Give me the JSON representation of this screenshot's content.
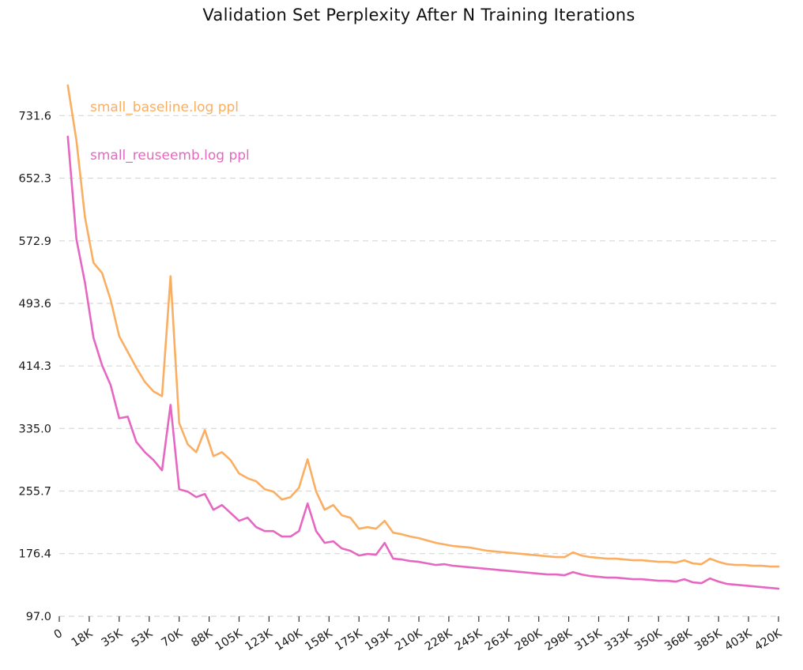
{
  "chart_data": {
    "type": "line",
    "title": "Validation Set Perplexity After N Training Iterations",
    "xlabel": "",
    "ylabel": "",
    "grid": "horizontal-dashed",
    "legend_position": "inline-top-left",
    "xlim": [
      0,
      420000
    ],
    "ylim": [
      97.0,
      790.0
    ],
    "yticks": [
      97.0,
      176.4,
      255.7,
      335.0,
      414.3,
      493.6,
      572.9,
      652.3,
      731.6
    ],
    "ytick_labels": [
      "97.0",
      "176.4",
      "255.7",
      "335.0",
      "414.3",
      "493.6",
      "572.9",
      "652.3",
      "731.6"
    ],
    "xticks": [
      0,
      17500,
      35000,
      52500,
      70000,
      87500,
      105000,
      122500,
      140000,
      157500,
      175000,
      192500,
      210000,
      227500,
      245000,
      262500,
      280000,
      297500,
      315000,
      332500,
      350000,
      367500,
      385000,
      402500,
      420000
    ],
    "xtick_labels": [
      "0",
      "18K",
      "35K",
      "53K",
      "70K",
      "88K",
      "105K",
      "123K",
      "140K",
      "158K",
      "175K",
      "193K",
      "210K",
      "228K",
      "245K",
      "263K",
      "280K",
      "298K",
      "315K",
      "333K",
      "350K",
      "368K",
      "385K",
      "403K",
      "420K"
    ],
    "x": [
      5000,
      10000,
      15000,
      20000,
      25000,
      30000,
      35000,
      40000,
      45000,
      50000,
      55000,
      60000,
      65000,
      70000,
      75000,
      80000,
      85000,
      90000,
      95000,
      100000,
      105000,
      110000,
      115000,
      120000,
      125000,
      130000,
      135000,
      140000,
      145000,
      150000,
      155000,
      160000,
      165000,
      170000,
      175000,
      180000,
      185000,
      190000,
      195000,
      200000,
      205000,
      210000,
      215000,
      220000,
      225000,
      230000,
      235000,
      240000,
      245000,
      250000,
      255000,
      260000,
      265000,
      270000,
      275000,
      280000,
      285000,
      290000,
      295000,
      300000,
      305000,
      310000,
      315000,
      320000,
      325000,
      330000,
      335000,
      340000,
      345000,
      350000,
      355000,
      360000,
      365000,
      370000,
      375000,
      380000,
      385000,
      390000,
      395000,
      400000,
      405000,
      410000,
      415000,
      420000
    ],
    "series": [
      {
        "key": "baseline",
        "name": "small_baseline.log ppl",
        "color": "#FAAE62",
        "values": [
          770,
          700,
          603,
          545,
          532,
          498,
          452,
          432,
          412,
          394,
          382,
          376,
          528,
          342,
          315,
          305,
          333,
          300,
          305,
          295,
          278,
          272,
          268,
          258,
          255,
          245,
          248,
          260,
          296,
          255,
          232,
          238,
          225,
          222,
          208,
          210,
          208,
          218,
          203,
          201,
          198,
          196,
          193,
          190,
          188,
          186,
          185,
          184,
          182,
          180,
          179,
          178,
          177,
          176,
          175,
          174,
          173,
          172,
          172,
          178,
          174,
          172,
          171,
          170,
          170,
          169,
          168,
          168,
          167,
          166,
          166,
          165,
          168,
          164,
          163,
          170,
          166,
          163,
          162,
          162,
          161,
          161,
          160,
          160
        ]
      },
      {
        "key": "reuseemb",
        "name": "small_reuseemb.log ppl",
        "color": "#E667C1",
        "values": [
          705,
          575,
          520,
          450,
          415,
          390,
          348,
          350,
          318,
          305,
          295,
          282,
          365,
          258,
          255,
          248,
          252,
          232,
          238,
          228,
          218,
          222,
          210,
          205,
          205,
          198,
          198,
          205,
          240,
          205,
          190,
          192,
          183,
          180,
          174,
          176,
          175,
          190,
          170,
          169,
          167,
          166,
          164,
          162,
          163,
          161,
          160,
          159,
          158,
          157,
          156,
          155,
          154,
          153,
          152,
          151,
          150,
          150,
          149,
          153,
          150,
          148,
          147,
          146,
          146,
          145,
          144,
          144,
          143,
          142,
          142,
          141,
          144,
          140,
          139,
          145,
          141,
          138,
          137,
          136,
          135,
          134,
          133,
          132
        ]
      }
    ]
  },
  "style": {
    "grid_color": "#d8d8d8",
    "tick_color": "#1a1a1a",
    "axis_tick_mark_color": "#333333"
  }
}
